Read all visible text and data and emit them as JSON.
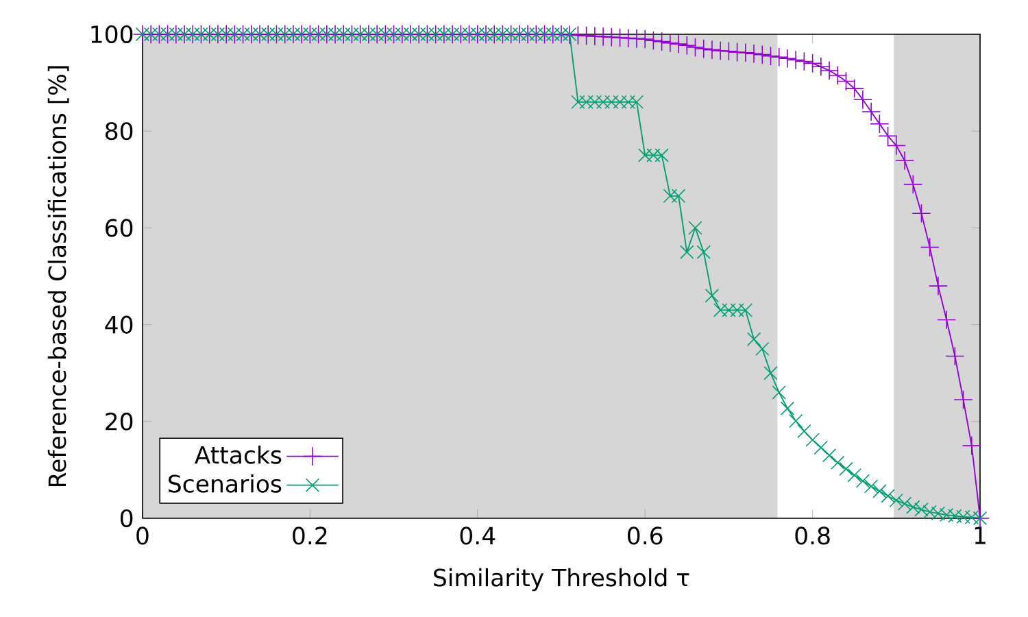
{
  "chart_data": {
    "type": "line",
    "xlabel": "Similarity Threshold τ",
    "ylabel": "Reference-based Classifications [%]",
    "x": [
      0,
      0.01,
      0.02,
      0.03,
      0.04,
      0.05,
      0.06,
      0.07,
      0.08,
      0.09,
      0.1,
      0.11,
      0.12,
      0.13,
      0.14,
      0.15,
      0.16,
      0.17,
      0.18,
      0.19,
      0.2,
      0.21,
      0.22,
      0.23,
      0.24,
      0.25,
      0.26,
      0.27,
      0.28,
      0.29,
      0.3,
      0.31,
      0.32,
      0.33,
      0.34,
      0.35,
      0.36,
      0.37,
      0.38,
      0.39,
      0.4,
      0.41,
      0.42,
      0.43,
      0.44,
      0.45,
      0.46,
      0.47,
      0.48,
      0.49,
      0.5,
      0.51,
      0.52,
      0.53,
      0.54,
      0.55,
      0.56,
      0.57,
      0.58,
      0.59,
      0.6,
      0.61,
      0.62,
      0.63,
      0.64,
      0.65,
      0.66,
      0.67,
      0.68,
      0.69,
      0.7,
      0.71,
      0.72,
      0.73,
      0.74,
      0.75,
      0.76,
      0.77,
      0.78,
      0.79,
      0.8,
      0.81,
      0.82,
      0.83,
      0.84,
      0.85,
      0.86,
      0.87,
      0.88,
      0.89,
      0.9,
      0.91,
      0.92,
      0.93,
      0.94,
      0.95,
      0.96,
      0.97,
      0.98,
      0.99,
      1
    ],
    "series": [
      {
        "name": "Attacks",
        "color": "#9400d3",
        "marker": "plus",
        "values": [
          100,
          100,
          100,
          100,
          100,
          100,
          100,
          100,
          100,
          100,
          100,
          100,
          100,
          100,
          100,
          100,
          100,
          100,
          100,
          100,
          100,
          100,
          100,
          100,
          100,
          100,
          100,
          100,
          100,
          100,
          100,
          100,
          100,
          100,
          100,
          100,
          100,
          100,
          100,
          100,
          100,
          100,
          100,
          100,
          100,
          100,
          100,
          100,
          100,
          100,
          100,
          99.9,
          99.8,
          99.7,
          99.6,
          99.5,
          99.4,
          99.3,
          99.2,
          99.1,
          99,
          98.7,
          98.5,
          98.2,
          98,
          97.7,
          97.3,
          97,
          96.8,
          96.6,
          96.5,
          96.3,
          96.2,
          96,
          95.8,
          95.5,
          95.3,
          95,
          94.7,
          94.4,
          94,
          93.3,
          92.5,
          91.5,
          90.3,
          88.8,
          86.5,
          84,
          81.5,
          79,
          77,
          73.9,
          69,
          63,
          56,
          48,
          41,
          33.5,
          24.5,
          15,
          0
        ]
      },
      {
        "name": "Scenarios",
        "color": "#009e73",
        "marker": "cross",
        "values": [
          100,
          100,
          100,
          100,
          100,
          100,
          100,
          100,
          100,
          100,
          100,
          100,
          100,
          100,
          100,
          100,
          100,
          100,
          100,
          100,
          100,
          100,
          100,
          100,
          100,
          100,
          100,
          100,
          100,
          100,
          100,
          100,
          100,
          100,
          100,
          100,
          100,
          100,
          100,
          100,
          100,
          100,
          100,
          100,
          100,
          100,
          100,
          100,
          100,
          100,
          100,
          100,
          86,
          86,
          86,
          86,
          86,
          86,
          86,
          86,
          75,
          75,
          75,
          66.6,
          66.6,
          55,
          60,
          55,
          46,
          43,
          43,
          43,
          43,
          37,
          35,
          30,
          26,
          22.7,
          20.1,
          18,
          16.2,
          14.6,
          13,
          11.5,
          10.2,
          8.9,
          7.7,
          6.6,
          5.6,
          4.6,
          3.7,
          3,
          2.3,
          1.8,
          1.3,
          1,
          0.7,
          0.5,
          0.3,
          0.2,
          0
        ]
      }
    ],
    "xlim": [
      0,
      1
    ],
    "xticks": [
      0,
      0.2,
      0.4,
      0.6,
      0.8,
      1
    ],
    "ylim": [
      0,
      100
    ],
    "yticks": [
      0,
      20,
      40,
      60,
      80,
      100
    ],
    "bands": [
      {
        "axis": "x",
        "from": 0,
        "to": 0.758,
        "color": "#d6d6d6"
      },
      {
        "axis": "x",
        "from": 0.897,
        "to": 1,
        "color": "#d6d6d6"
      }
    ],
    "legend": "bottom left",
    "line_style": "solid",
    "grid": false
  }
}
